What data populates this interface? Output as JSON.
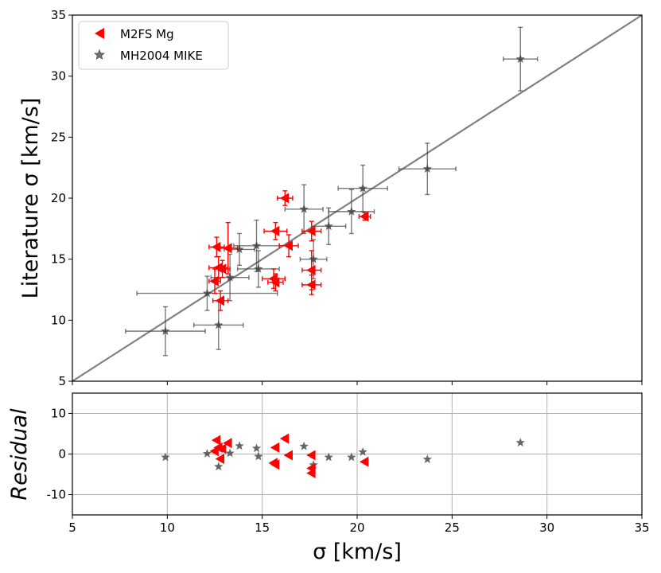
{
  "chart_data": [
    {
      "type": "scatter",
      "panel": "main",
      "xlabel": "σ [km/s]",
      "ylabel": "Literature σ [km/s]",
      "xlim": [
        5,
        35
      ],
      "ylim": [
        5,
        35
      ],
      "xticks": [
        "5",
        "10",
        "15",
        "20",
        "25",
        "30",
        "35"
      ],
      "yticks": [
        "5",
        "10",
        "15",
        "20",
        "25",
        "30",
        "35"
      ],
      "grid": false,
      "legend_position": "top-left",
      "one_to_one_line": true,
      "series": [
        {
          "name": "M2FS Mg",
          "marker": "left-triangle",
          "color": "#ff0000",
          "points": [
            {
              "x": 12.6,
              "y": 16.0,
              "xerr": 0.4,
              "yerr": 0.8
            },
            {
              "x": 13.2,
              "y": 15.9,
              "xerr": 0.5,
              "yerr": 2.1
            },
            {
              "x": 12.7,
              "y": 14.3,
              "xerr": 0.5,
              "yerr": 0.9
            },
            {
              "x": 12.9,
              "y": 14.2,
              "xerr": 0.4,
              "yerr": 0.7
            },
            {
              "x": 12.5,
              "y": 13.2,
              "xerr": 0.3,
              "yerr": 1.0
            },
            {
              "x": 12.8,
              "y": 11.6,
              "xerr": 0.4,
              "yerr": 0.8
            },
            {
              "x": 16.2,
              "y": 20.0,
              "xerr": 0.4,
              "yerr": 0.6
            },
            {
              "x": 15.7,
              "y": 17.3,
              "xerr": 0.6,
              "yerr": 0.7
            },
            {
              "x": 16.4,
              "y": 16.1,
              "xerr": 0.5,
              "yerr": 0.9
            },
            {
              "x": 15.6,
              "y": 13.4,
              "xerr": 0.6,
              "yerr": 0.8
            },
            {
              "x": 15.7,
              "y": 13.1,
              "xerr": 0.4,
              "yerr": 0.7
            },
            {
              "x": 17.6,
              "y": 17.3,
              "xerr": 0.5,
              "yerr": 0.8
            },
            {
              "x": 17.6,
              "y": 14.1,
              "xerr": 0.5,
              "yerr": 1.6
            },
            {
              "x": 17.6,
              "y": 12.9,
              "xerr": 0.5,
              "yerr": 0.8
            },
            {
              "x": 20.4,
              "y": 18.5,
              "xerr": 0.3,
              "yerr": 0.3
            }
          ]
        },
        {
          "name": "MH2004 MIKE",
          "marker": "star",
          "color": "#404040",
          "points": [
            {
              "x": 28.6,
              "y": 31.4,
              "xerr": 0.9,
              "yerr": 2.6
            },
            {
              "x": 23.7,
              "y": 22.4,
              "xerr": 1.5,
              "yerr": 2.1
            },
            {
              "x": 20.3,
              "y": 20.8,
              "xerr": 1.3,
              "yerr": 1.9
            },
            {
              "x": 19.7,
              "y": 18.9,
              "xerr": 1.2,
              "yerr": 1.8
            },
            {
              "x": 17.2,
              "y": 19.1,
              "xerr": 1.0,
              "yerr": 2.0
            },
            {
              "x": 18.5,
              "y": 17.7,
              "xerr": 0.9,
              "yerr": 1.5
            },
            {
              "x": 17.7,
              "y": 15.0,
              "xerr": 0.7,
              "yerr": 1.6
            },
            {
              "x": 14.7,
              "y": 16.1,
              "xerr": 1.2,
              "yerr": 2.1
            },
            {
              "x": 13.8,
              "y": 15.8,
              "xerr": 0.8,
              "yerr": 1.3
            },
            {
              "x": 14.8,
              "y": 14.2,
              "xerr": 1.1,
              "yerr": 1.5
            },
            {
              "x": 13.3,
              "y": 13.5,
              "xerr": 1.0,
              "yerr": 1.9
            },
            {
              "x": 12.1,
              "y": 12.2,
              "xerr": 3.7,
              "yerr": 1.4
            },
            {
              "x": 9.9,
              "y": 9.1,
              "xerr": 2.1,
              "yerr": 2.0
            },
            {
              "x": 12.7,
              "y": 9.6,
              "xerr": 1.3,
              "yerr": 2.0
            }
          ]
        }
      ]
    },
    {
      "type": "scatter",
      "panel": "residual",
      "xlabel": "σ [km/s]",
      "ylabel": "Residual",
      "xlim": [
        5,
        35
      ],
      "ylim": [
        -15,
        15
      ],
      "xticks": [
        "5",
        "10",
        "15",
        "20",
        "25",
        "30",
        "35"
      ],
      "yticks": [
        "-10",
        "0",
        "10"
      ],
      "grid": true,
      "series": [
        {
          "name": "M2FS Mg",
          "marker": "left-triangle",
          "color": "#ff0000",
          "points": [
            {
              "x": 12.6,
              "y": 3.4
            },
            {
              "x": 13.2,
              "y": 2.7
            },
            {
              "x": 12.7,
              "y": 1.6
            },
            {
              "x": 12.9,
              "y": 1.3
            },
            {
              "x": 12.5,
              "y": 0.7
            },
            {
              "x": 12.8,
              "y": -1.2
            },
            {
              "x": 16.2,
              "y": 3.8
            },
            {
              "x": 15.7,
              "y": 1.6
            },
            {
              "x": 16.4,
              "y": -0.3
            },
            {
              "x": 15.6,
              "y": -2.2
            },
            {
              "x": 15.7,
              "y": -2.6
            },
            {
              "x": 17.6,
              "y": -0.3
            },
            {
              "x": 17.6,
              "y": -3.5
            },
            {
              "x": 17.6,
              "y": -4.7
            },
            {
              "x": 20.4,
              "y": -1.9
            }
          ]
        },
        {
          "name": "MH2004 MIKE",
          "marker": "star",
          "color": "#404040",
          "points": [
            {
              "x": 28.6,
              "y": 2.8
            },
            {
              "x": 23.7,
              "y": -1.3
            },
            {
              "x": 20.3,
              "y": 0.5
            },
            {
              "x": 19.7,
              "y": -0.8
            },
            {
              "x": 17.2,
              "y": 1.9
            },
            {
              "x": 18.5,
              "y": -0.8
            },
            {
              "x": 17.7,
              "y": -2.7
            },
            {
              "x": 14.7,
              "y": 1.4
            },
            {
              "x": 13.8,
              "y": 2.0
            },
            {
              "x": 14.8,
              "y": -0.6
            },
            {
              "x": 13.3,
              "y": 0.2
            },
            {
              "x": 12.1,
              "y": 0.1
            },
            {
              "x": 9.9,
              "y": -0.8
            },
            {
              "x": 12.7,
              "y": -3.1
            }
          ]
        }
      ]
    }
  ]
}
